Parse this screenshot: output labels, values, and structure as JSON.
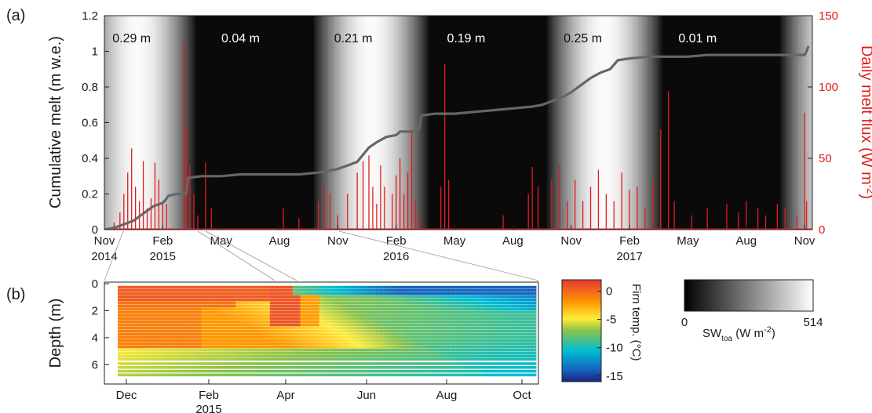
{
  "panel_labels": {
    "a": "(a)",
    "b": "(b)"
  },
  "colors": {
    "melt_flux": "#e41a1c",
    "cumulative": "#666666",
    "axis_right": "#e41a1c"
  },
  "chart_data": [
    {
      "id": "a",
      "type": "line",
      "background": "SW_toa shading (grayscale 0-514 W m-2)",
      "ylabel_left": "Cumulative melt (m w.e.)",
      "ylabel_right": "Daily melt flux (W m",
      "ylabel_right_sup": "-2",
      "ylabel_right_end": ")",
      "ylim_left": [
        0,
        1.2
      ],
      "ylim_right": [
        0,
        150
      ],
      "yticks_left": [
        "0",
        "0.2",
        "0.4",
        "0.6",
        "0.8",
        "1",
        "1.2"
      ],
      "yticks_right": [
        "0",
        "50",
        "100",
        "150"
      ],
      "xticks": [
        {
          "top": "Nov",
          "bottom": "2014"
        },
        {
          "top": "Feb",
          "bottom": "2015"
        },
        {
          "top": "May",
          "bottom": ""
        },
        {
          "top": "Aug",
          "bottom": ""
        },
        {
          "top": "Nov",
          "bottom": ""
        },
        {
          "top": "Feb",
          "bottom": "2016"
        },
        {
          "top": "May",
          "bottom": ""
        },
        {
          "top": "Aug",
          "bottom": ""
        },
        {
          "top": "Nov",
          "bottom": ""
        },
        {
          "top": "Feb",
          "bottom": "2017"
        },
        {
          "top": "May",
          "bottom": ""
        },
        {
          "top": "Aug",
          "bottom": ""
        },
        {
          "top": "Nov",
          "bottom": ""
        }
      ],
      "season_labels": [
        "0.29 m",
        "0.04 m",
        "0.21 m",
        "0.19 m",
        "0.25 m",
        "0.01 m"
      ],
      "series": [
        {
          "axis": "left",
          "x_month_index": [
            0,
            0.5,
            1,
            1.5,
            2,
            2.5,
            3,
            3.1,
            3.3,
            3.7,
            4.2,
            4.3,
            5,
            6,
            7,
            8,
            9,
            10,
            11,
            11.5,
            12,
            12.5,
            13,
            13.6,
            14,
            14.5,
            15,
            15.2,
            15.9,
            16.2,
            16.3,
            17,
            18,
            19,
            20,
            21,
            22,
            22.5,
            23,
            23.5,
            24,
            24.5,
            25,
            25.5,
            26,
            26.4,
            27,
            28,
            29,
            30,
            31,
            32,
            33,
            34,
            35,
            36,
            36.1,
            36.2
          ],
          "y": [
            0,
            0.01,
            0.03,
            0.05,
            0.09,
            0.13,
            0.15,
            0.16,
            0.19,
            0.2,
            0.2,
            0.29,
            0.3,
            0.3,
            0.31,
            0.31,
            0.31,
            0.31,
            0.32,
            0.33,
            0.34,
            0.36,
            0.38,
            0.46,
            0.49,
            0.52,
            0.53,
            0.55,
            0.55,
            0.57,
            0.64,
            0.65,
            0.65,
            0.66,
            0.67,
            0.68,
            0.69,
            0.7,
            0.72,
            0.74,
            0.77,
            0.81,
            0.85,
            0.88,
            0.9,
            0.95,
            0.96,
            0.97,
            0.97,
            0.97,
            0.98,
            0.98,
            0.98,
            0.98,
            0.98,
            0.98,
            1.0,
            1.03
          ]
        },
        {
          "axis": "right",
          "spikes": [
            [
              0.5,
              5
            ],
            [
              0.8,
              12
            ],
            [
              1.0,
              25
            ],
            [
              1.2,
              40
            ],
            [
              1.4,
              57
            ],
            [
              1.6,
              30
            ],
            [
              1.8,
              20
            ],
            [
              2.0,
              48
            ],
            [
              2.2,
              15
            ],
            [
              2.4,
              22
            ],
            [
              2.6,
              47
            ],
            [
              2.8,
              35
            ],
            [
              3.0,
              20
            ],
            [
              3.2,
              18
            ],
            [
              4.1,
              132
            ],
            [
              4.2,
              70
            ],
            [
              4.4,
              45
            ],
            [
              4.6,
              25
            ],
            [
              4.8,
              10
            ],
            [
              5.2,
              47
            ],
            [
              5.5,
              15
            ],
            [
              9.2,
              15
            ],
            [
              10.0,
              8
            ],
            [
              11.0,
              20
            ],
            [
              11.3,
              30
            ],
            [
              11.6,
              25
            ],
            [
              12.0,
              10
            ],
            [
              12.5,
              25
            ],
            [
              13.0,
              40
            ],
            [
              13.3,
              48
            ],
            [
              13.6,
              52
            ],
            [
              13.8,
              30
            ],
            [
              14.0,
              18
            ],
            [
              14.2,
              45
            ],
            [
              14.4,
              30
            ],
            [
              14.8,
              25
            ],
            [
              15.0,
              38
            ],
            [
              15.2,
              50
            ],
            [
              15.4,
              25
            ],
            [
              15.6,
              40
            ],
            [
              15.8,
              70
            ],
            [
              16.0,
              20
            ],
            [
              16.2,
              10
            ],
            [
              17.3,
              30
            ],
            [
              17.5,
              116
            ],
            [
              17.7,
              35
            ],
            [
              20.5,
              10
            ],
            [
              21.8,
              25
            ],
            [
              22.0,
              44
            ],
            [
              22.3,
              30
            ],
            [
              23.0,
              35
            ],
            [
              23.4,
              45
            ],
            [
              23.8,
              20
            ],
            [
              24.2,
              35
            ],
            [
              24.6,
              20
            ],
            [
              25.0,
              30
            ],
            [
              25.4,
              42
            ],
            [
              25.8,
              25
            ],
            [
              26.2,
              20
            ],
            [
              26.6,
              40
            ],
            [
              27.0,
              28
            ],
            [
              27.4,
              30
            ],
            [
              27.8,
              15
            ],
            [
              28.2,
              35
            ],
            [
              28.6,
              70
            ],
            [
              29.0,
              97
            ],
            [
              29.3,
              20
            ],
            [
              30.2,
              10
            ],
            [
              31.0,
              15
            ],
            [
              32.0,
              18
            ],
            [
              32.6,
              12
            ],
            [
              33.0,
              20
            ],
            [
              33.6,
              15
            ],
            [
              34.0,
              10
            ],
            [
              34.6,
              18
            ],
            [
              35.0,
              15
            ],
            [
              35.6,
              10
            ],
            [
              36.0,
              82
            ],
            [
              36.1,
              20
            ]
          ]
        }
      ]
    },
    {
      "id": "b",
      "type": "heatmap",
      "ylabel": "Depth (m)",
      "yticks": [
        "0",
        "2",
        "4",
        "6"
      ],
      "ylim": [
        0,
        7.2
      ],
      "xticks": [
        {
          "top": "Dec",
          "bottom": ""
        },
        {
          "top": "Feb",
          "bottom": "2015"
        },
        {
          "top": "Apr",
          "bottom": ""
        },
        {
          "top": "Jun",
          "bottom": ""
        },
        {
          "top": "Aug",
          "bottom": ""
        },
        {
          "top": "Oct",
          "bottom": ""
        }
      ],
      "colorbar": {
        "label": "Firn temp. (",
        "label_unit": "°C",
        "label_end": ")",
        "ticks": [
          "0",
          "-5",
          "-10",
          "-15"
        ],
        "range": [
          -16,
          2
        ]
      },
      "depths_m": [
        0.1,
        0.35,
        0.6,
        0.85,
        1.1,
        1.35,
        1.6,
        1.85,
        2.1,
        2.35,
        2.6,
        2.85,
        3.1,
        3.35,
        3.6,
        3.85,
        4.1,
        4.35,
        4.6,
        4.85,
        5.1,
        5.35,
        5.6,
        5.85,
        6.2,
        6.5,
        6.8,
        7.1
      ]
    },
    {
      "id": "sw_colorbar",
      "type": "heatmap",
      "label_main": "SW",
      "label_sub": "toa",
      "label_unit": " (W m",
      "label_sup": "-2",
      "label_end": ")",
      "ticks": [
        "0",
        "514"
      ],
      "range": [
        0,
        514
      ]
    }
  ]
}
